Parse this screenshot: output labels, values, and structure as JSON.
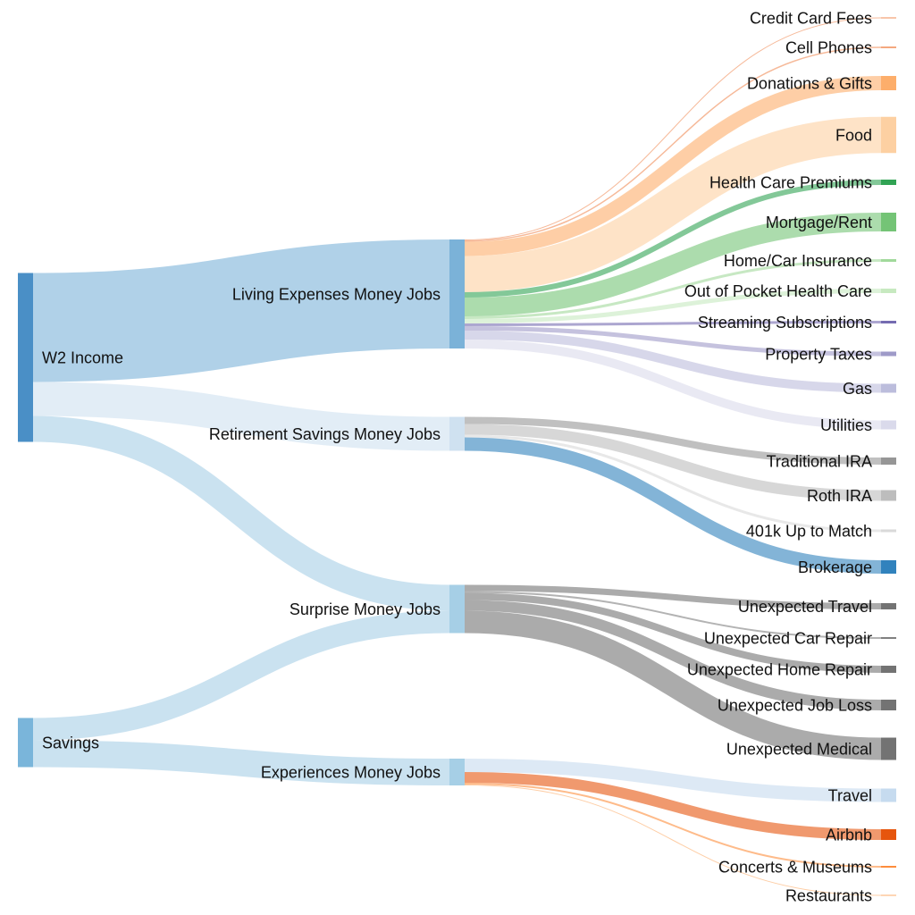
{
  "chart_data": {
    "type": "sankey",
    "title": "",
    "nodes": [
      {
        "id": "w2",
        "label": "W2 Income",
        "color": "#4a8fc6"
      },
      {
        "id": "savings",
        "label": "Savings",
        "color": "#7ab5da"
      },
      {
        "id": "living",
        "label": "Living Expenses Money Jobs",
        "color": "#7bb2d8"
      },
      {
        "id": "retirement",
        "label": "Retirement Savings Money Jobs",
        "color": "#cfe1f0"
      },
      {
        "id": "surprise",
        "label": "Surprise Money Jobs",
        "color": "#a6cfe6"
      },
      {
        "id": "experiences",
        "label": "Experiences Money Jobs",
        "color": "#a6cfe6"
      },
      {
        "id": "ccfees",
        "label": "Credit Card Fees",
        "color": "#f08b55"
      },
      {
        "id": "cell",
        "label": "Cell Phones",
        "color": "#f08b55"
      },
      {
        "id": "donations",
        "label": "Donations & Gifts",
        "color": "#fdae6b"
      },
      {
        "id": "food",
        "label": "Food",
        "color": "#fdd0a2"
      },
      {
        "id": "hcp",
        "label": "Health Care Premiums",
        "color": "#31a354"
      },
      {
        "id": "mortgage",
        "label": "Mortgage/Rent",
        "color": "#74c476"
      },
      {
        "id": "homecar",
        "label": "Home/Car Insurance",
        "color": "#a1d99b"
      },
      {
        "id": "oop",
        "label": "Out of Pocket Health Care",
        "color": "#c7e9c0"
      },
      {
        "id": "streaming",
        "label": "Streaming Subscriptions",
        "color": "#756bb1"
      },
      {
        "id": "property",
        "label": "Property Taxes",
        "color": "#9e9ac8"
      },
      {
        "id": "gas",
        "label": "Gas",
        "color": "#bcbddc"
      },
      {
        "id": "utilities",
        "label": "Utilities",
        "color": "#dadaeb"
      },
      {
        "id": "tradira",
        "label": "Traditional IRA",
        "color": "#969696"
      },
      {
        "id": "rothira",
        "label": "Roth IRA",
        "color": "#bdbdbd"
      },
      {
        "id": "k401",
        "label": "401k Up to Match",
        "color": "#d9d9d9"
      },
      {
        "id": "brokerage",
        "label": "Brokerage",
        "color": "#3182bd"
      },
      {
        "id": "utravel",
        "label": "Unexpected Travel",
        "color": "#737373"
      },
      {
        "id": "ucar",
        "label": "Unexpected Car Repair",
        "color": "#808080"
      },
      {
        "id": "uhome",
        "label": "Unexpected Home Repair",
        "color": "#737373"
      },
      {
        "id": "ujob",
        "label": "Unexpected Job Loss",
        "color": "#737373"
      },
      {
        "id": "umedical",
        "label": "Unexpected Medical",
        "color": "#737373"
      },
      {
        "id": "travel",
        "label": "Travel",
        "color": "#c6dbef"
      },
      {
        "id": "airbnb",
        "label": "Airbnb",
        "color": "#e6550d"
      },
      {
        "id": "concerts",
        "label": "Concerts & Museums",
        "color": "#fd8d3c"
      },
      {
        "id": "restaurants",
        "label": "Restaurants",
        "color": "#fdae6b"
      }
    ],
    "links": [
      {
        "source": "w2",
        "target": "living",
        "value": 122
      },
      {
        "source": "w2",
        "target": "retirement",
        "value": 38
      },
      {
        "source": "w2",
        "target": "surprise",
        "value": 29
      },
      {
        "source": "savings",
        "target": "surprise",
        "value": 25
      },
      {
        "source": "savings",
        "target": "experiences",
        "value": 30
      },
      {
        "source": "living",
        "target": "ccfees",
        "value": 1
      },
      {
        "source": "living",
        "target": "cell",
        "value": 1.5
      },
      {
        "source": "living",
        "target": "donations",
        "value": 16
      },
      {
        "source": "living",
        "target": "food",
        "value": 40.5
      },
      {
        "source": "living",
        "target": "hcp",
        "value": 6
      },
      {
        "source": "living",
        "target": "mortgage",
        "value": 21
      },
      {
        "source": "living",
        "target": "homecar",
        "value": 3
      },
      {
        "source": "living",
        "target": "oop",
        "value": 5
      },
      {
        "source": "living",
        "target": "streaming",
        "value": 3
      },
      {
        "source": "living",
        "target": "property",
        "value": 5
      },
      {
        "source": "living",
        "target": "gas",
        "value": 10
      },
      {
        "source": "living",
        "target": "utilities",
        "value": 10
      },
      {
        "source": "retirement",
        "target": "tradira",
        "value": 8
      },
      {
        "source": "retirement",
        "target": "rothira",
        "value": 12
      },
      {
        "source": "retirement",
        "target": "k401",
        "value": 3
      },
      {
        "source": "retirement",
        "target": "brokerage",
        "value": 15
      },
      {
        "source": "surprise",
        "target": "utravel",
        "value": 7
      },
      {
        "source": "surprise",
        "target": "ucar",
        "value": 2
      },
      {
        "source": "surprise",
        "target": "uhome",
        "value": 8
      },
      {
        "source": "surprise",
        "target": "ujob",
        "value": 12
      },
      {
        "source": "surprise",
        "target": "umedical",
        "value": 25
      },
      {
        "source": "experiences",
        "target": "travel",
        "value": 15
      },
      {
        "source": "experiences",
        "target": "airbnb",
        "value": 12
      },
      {
        "source": "experiences",
        "target": "concerts",
        "value": 2
      },
      {
        "source": "experiences",
        "target": "restaurants",
        "value": 1
      }
    ]
  }
}
